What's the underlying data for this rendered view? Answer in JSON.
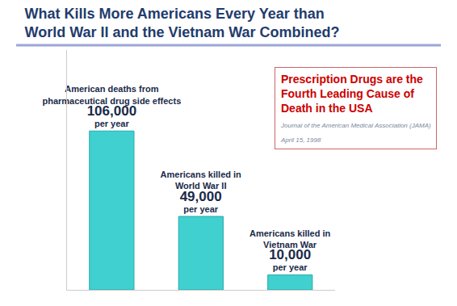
{
  "chart_data": {
    "type": "bar",
    "title": "What Kills More Americans Every Year than World War II and the Vietnam War Combined?",
    "categories": [
      "American deaths from pharmaceutical drug side effects",
      "Americans killed in World War II",
      "Americans killed in Vietnam War"
    ],
    "values": [
      106000,
      49000,
      10000
    ],
    "value_labels": [
      "106,000 per year",
      "49,000 per year",
      "10,000 per year"
    ],
    "color": "#40d0d0",
    "ylim": [
      0,
      160000
    ],
    "yticks": [],
    "grid": false,
    "data_labels": true,
    "tick_labels": false,
    "annotations": [
      {
        "text": "Prescription Drugs are the Fourth Leading Cause of Death in the USA"
      },
      {
        "text": "Journal of the American Medical Association (JAMA) April 15, 1998"
      }
    ]
  }
}
